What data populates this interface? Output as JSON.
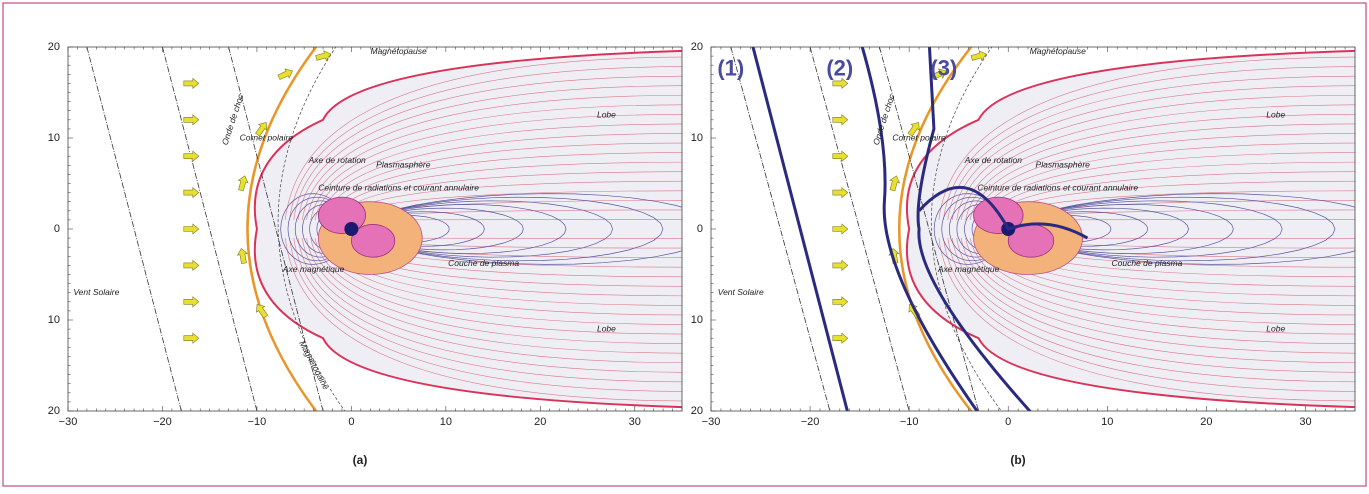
{
  "panels": [
    {
      "caption": "(a)",
      "x_tick_labels": [
        "−30",
        "−20",
        "−10",
        "0",
        "10",
        "20",
        "30"
      ],
      "y_tick_labels": [
        "20",
        "10",
        "0",
        "10",
        "20"
      ],
      "labels": [
        "Vent Solaire",
        "Onde de choc",
        "Magnétopause",
        "Cornet polaire",
        "Axe de rotation",
        "Plasmasphère",
        "Ceinture de radiations et courant annulaire",
        "Axe magnétique",
        "Couche de plasma",
        "Lobe",
        "Lobe",
        "Magnétogaine"
      ]
    },
    {
      "caption": "(b)",
      "x_tick_labels": [
        "−30",
        "−20",
        "−10",
        "0",
        "10",
        "20",
        "30"
      ],
      "y_tick_labels": [
        "20",
        "10",
        "0",
        "10",
        "20"
      ],
      "labels": [
        "Vent Solaire",
        "Onde de choc",
        "Magnétopause",
        "Cornet polaire",
        "Axe de rotation",
        "Plasmasphère",
        "Ceinture de radiations et courant annulaire",
        "Axe magnétique",
        "Couche de plasma",
        "Lobe",
        "Lobe",
        "(1)",
        "(2)",
        "(3)"
      ]
    }
  ]
}
